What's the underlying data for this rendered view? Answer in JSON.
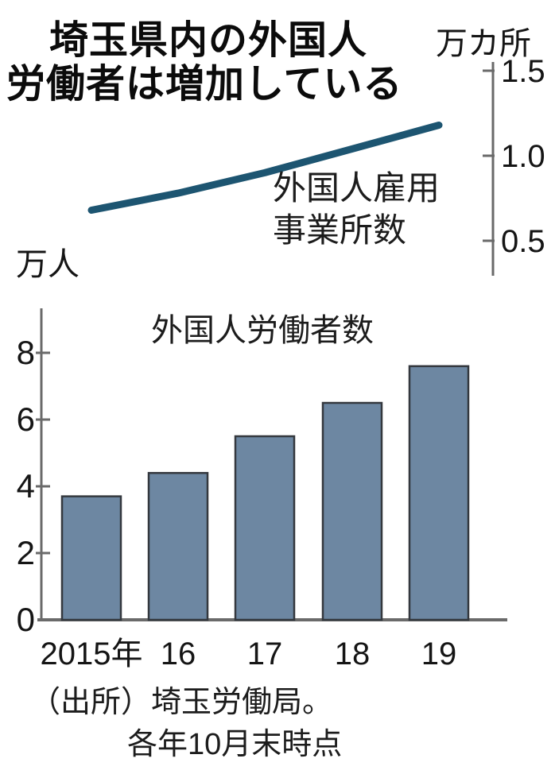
{
  "header": {
    "title_line1": "埼玉県内の外国人",
    "title_line2": "労働者は増加している"
  },
  "footer": {
    "source_line1": "（出所）埼玉労働局。",
    "source_line2": "各年10月末時点"
  },
  "colors": {
    "line_stroke": "#1d5571",
    "bar_fill": "#6d87a2",
    "bar_border": "#34383e",
    "axis": "#6a6a6a",
    "text": "#151515"
  },
  "chart_data": [
    {
      "type": "line",
      "title": "外国人雇用事業所数",
      "series_label_line1": "外国人雇用",
      "series_label_line2": "事業所数",
      "unit": "万カ所",
      "axis_position": "right",
      "categories": [
        "2015年",
        "16",
        "17",
        "18",
        "19"
      ],
      "values": [
        0.68,
        0.78,
        0.9,
        1.04,
        1.18
      ],
      "yticks": [
        1.5,
        1.0,
        0.5
      ],
      "ytick_labels": [
        "1.5",
        "1.0",
        "0.5"
      ],
      "ylim": [
        0.35,
        1.6
      ],
      "grid": false,
      "line_color": "#1d5571"
    },
    {
      "type": "bar",
      "title": "外国人労働者数",
      "unit": "万人",
      "axis_position": "left",
      "categories": [
        "2015年",
        "16",
        "17",
        "18",
        "19"
      ],
      "values": [
        3.7,
        4.4,
        5.5,
        6.5,
        7.6
      ],
      "yticks": [
        0,
        2,
        4,
        6,
        8
      ],
      "ytick_labels": [
        "0",
        "2",
        "4",
        "6",
        "8"
      ],
      "ylim": [
        0,
        9.3
      ],
      "grid": false,
      "bar_color": "#6d87a2",
      "bar_border_color": "#34383e"
    }
  ]
}
